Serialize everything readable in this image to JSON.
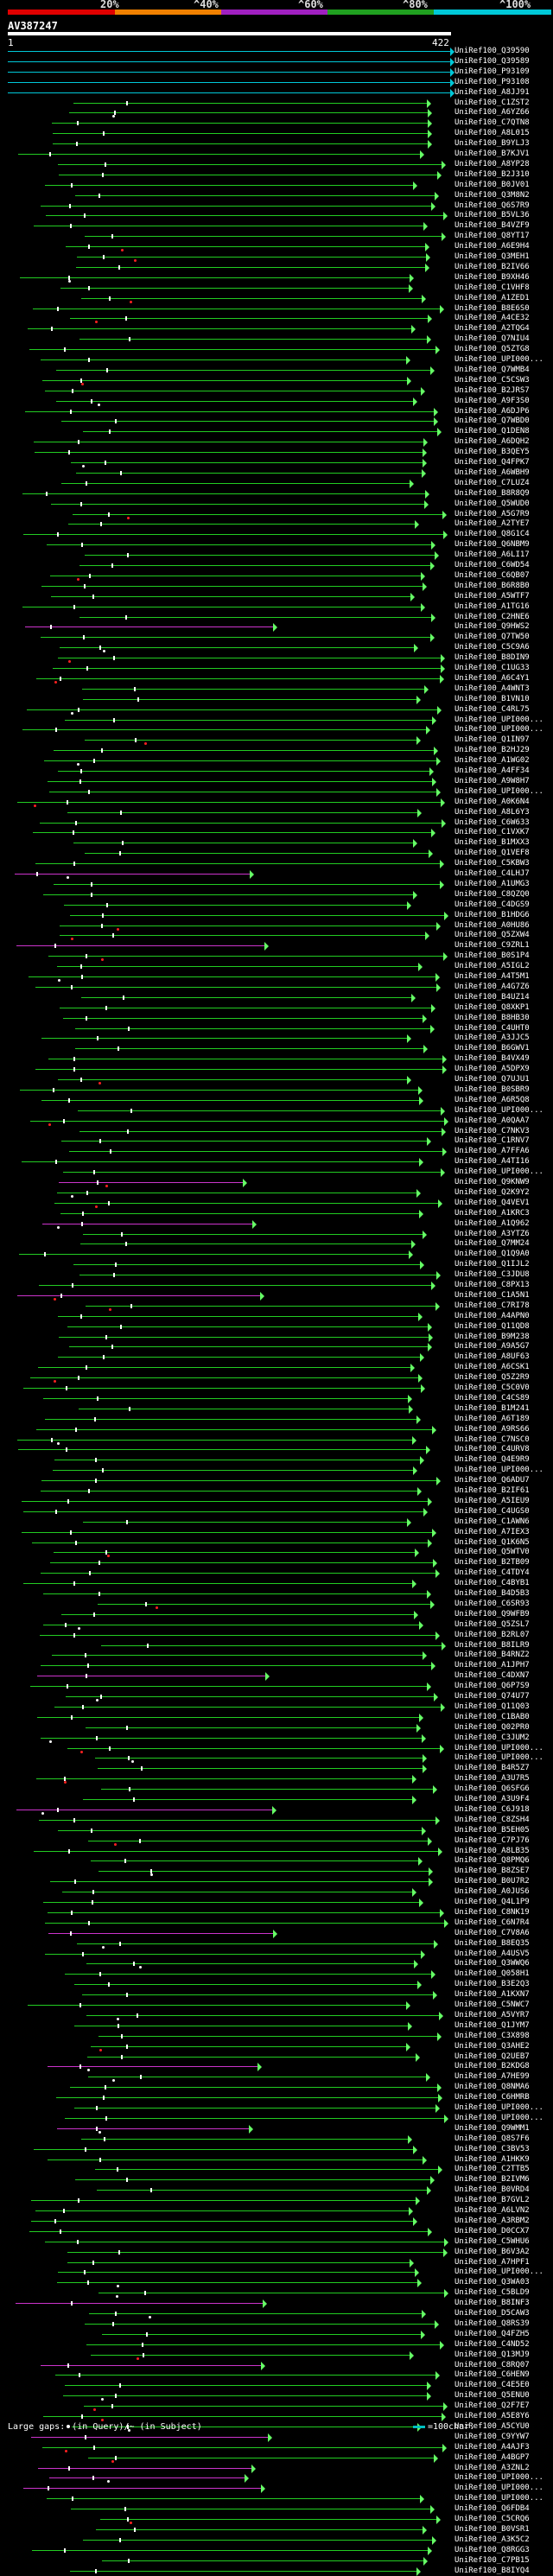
{
  "scale": {
    "labels": [
      "20%",
      "^40%",
      "^60%",
      "^80%",
      "^100%"
    ],
    "colors": [
      "#e00000",
      "#f08000",
      "#a020c0",
      "#20a020",
      "#00c8d8"
    ]
  },
  "query": {
    "name": "AV387247",
    "start": "1",
    "end": "422"
  },
  "legend": {
    "gaps_text_before": "Large gaps:",
    "gaps_text_after": "(in Query)/~ (in Subject)",
    "bar_text": "=100char."
  },
  "colors": {
    "green": "#22cc22",
    "cyan": "#00c8d8",
    "magenta": "#cc33cc",
    "arrow": "#66ff66",
    "marker": "#ffffff",
    "red": "#ff2020"
  },
  "hits": [
    {
      "label": "UniRef100_Q39590",
      "color": "cyan"
    },
    {
      "label": "UniRef100_Q39589",
      "color": "cyan"
    },
    {
      "label": "UniRef100_P93109",
      "color": "cyan"
    },
    {
      "label": "UniRef100_P93108",
      "color": "cyan"
    },
    {
      "label": "UniRef100_A8JJ91",
      "color": "cyan"
    },
    {
      "label": "UniRef100_C1ZST2",
      "color": "green"
    },
    {
      "label": "UniRef100_A6YZ66",
      "color": "green"
    },
    {
      "label": "UniRef100_C7QTN8",
      "color": "green"
    },
    {
      "label": "UniRef100_A8L015",
      "color": "green"
    },
    {
      "label": "UniRef100_B9YLJ3",
      "color": "green"
    },
    {
      "label": "UniRef100_B7KJV1",
      "color": "green"
    },
    {
      "label": "UniRef100_A8YP28",
      "color": "green"
    },
    {
      "label": "UniRef100_B2J310",
      "color": "green"
    },
    {
      "label": "UniRef100_B0JV01",
      "color": "green"
    },
    {
      "label": "UniRef100_Q3M8N2",
      "color": "green"
    },
    {
      "label": "UniRef100_Q6S7R9",
      "color": "green"
    },
    {
      "label": "UniRef100_B5VL36",
      "color": "green"
    },
    {
      "label": "UniRef100_B4VZF9",
      "color": "green"
    },
    {
      "label": "UniRef100_Q8YT17",
      "color": "green"
    },
    {
      "label": "UniRef100_A6E9H4",
      "color": "green"
    },
    {
      "label": "UniRef100_Q3MEH1",
      "color": "green"
    },
    {
      "label": "UniRef100_B2IV66",
      "color": "green"
    },
    {
      "label": "UniRef100_B9XH46",
      "color": "green"
    },
    {
      "label": "UniRef100_C1VHF8",
      "color": "green"
    },
    {
      "label": "UniRef100_A1ZED1",
      "color": "green"
    },
    {
      "label": "UniRef100_B8E6S0",
      "color": "green"
    },
    {
      "label": "UniRef100_A4CE32",
      "color": "green"
    },
    {
      "label": "UniRef100_A2TQG4",
      "color": "green"
    },
    {
      "label": "UniRef100_Q7NIU4",
      "color": "green"
    },
    {
      "label": "UniRef100_Q5ZTG8",
      "color": "green"
    },
    {
      "label": "UniRef100_UPI000...",
      "color": "green"
    },
    {
      "label": "UniRef100_Q7WMB4",
      "color": "green"
    },
    {
      "label": "UniRef100_C5CSW3",
      "color": "green"
    },
    {
      "label": "UniRef100_B2JRS7",
      "color": "green"
    },
    {
      "label": "UniRef100_A9F3S0",
      "color": "green"
    },
    {
      "label": "UniRef100_A6DJP6",
      "color": "green"
    },
    {
      "label": "UniRef100_Q7WBD0",
      "color": "green"
    },
    {
      "label": "UniRef100_Q1DEN8",
      "color": "green"
    },
    {
      "label": "UniRef100_A6DQH2",
      "color": "green"
    },
    {
      "label": "UniRef100_B3QEY5",
      "color": "green"
    },
    {
      "label": "UniRef100_Q4FPK7",
      "color": "green"
    },
    {
      "label": "UniRef100_A6WBH9",
      "color": "green"
    },
    {
      "label": "UniRef100_C7LUZ4",
      "color": "green"
    },
    {
      "label": "UniRef100_B8R8Q9",
      "color": "green"
    },
    {
      "label": "UniRef100_Q5WUD0",
      "color": "green"
    },
    {
      "label": "UniRef100_A5G7R9",
      "color": "green"
    },
    {
      "label": "UniRef100_A2TYE7",
      "color": "green"
    },
    {
      "label": "UniRef100_Q8G1C4",
      "color": "green"
    },
    {
      "label": "UniRef100_Q6NBM9",
      "color": "green"
    },
    {
      "label": "UniRef100_A6LI17",
      "color": "green"
    },
    {
      "label": "UniRef100_C6WD54",
      "color": "green"
    },
    {
      "label": "UniRef100_C6QB07",
      "color": "green"
    },
    {
      "label": "UniRef100_B6R8B0",
      "color": "green"
    },
    {
      "label": "UniRef100_A5WTF7",
      "color": "green"
    },
    {
      "label": "UniRef100_A1TG16",
      "color": "green"
    },
    {
      "label": "UniRef100_C2HNE6",
      "color": "green"
    },
    {
      "label": "UniRef100_Q9HWS2",
      "color": "magenta"
    },
    {
      "label": "UniRef100_Q7TW50",
      "color": "green"
    },
    {
      "label": "UniRef100_C5C9A6",
      "color": "green"
    },
    {
      "label": "UniRef100_B8DIN9",
      "color": "green"
    },
    {
      "label": "UniRef100_C1UG33",
      "color": "green"
    },
    {
      "label": "UniRef100_A6C4Y1",
      "color": "green"
    },
    {
      "label": "UniRef100_A4WNT3",
      "color": "green"
    },
    {
      "label": "UniRef100_B1VN10",
      "color": "green"
    },
    {
      "label": "UniRef100_C4RL75",
      "color": "green"
    },
    {
      "label": "UniRef100_UPI000...",
      "color": "green"
    },
    {
      "label": "UniRef100_UPI000...",
      "color": "green"
    },
    {
      "label": "UniRef100_Q1IN97",
      "color": "green"
    },
    {
      "label": "UniRef100_B2HJ29",
      "color": "green"
    },
    {
      "label": "UniRef100_A1WG02",
      "color": "green"
    },
    {
      "label": "UniRef100_A4FF34",
      "color": "green"
    },
    {
      "label": "UniRef100_A9W8H7",
      "color": "green"
    },
    {
      "label": "UniRef100_UPI000...",
      "color": "green"
    },
    {
      "label": "UniRef100_A0K6N4",
      "color": "green"
    },
    {
      "label": "UniRef100_A8L6Y3",
      "color": "green"
    },
    {
      "label": "UniRef100_C6W633",
      "color": "green"
    },
    {
      "label": "UniRef100_C1VXK7",
      "color": "green"
    },
    {
      "label": "UniRef100_B1MXX3",
      "color": "green"
    },
    {
      "label": "UniRef100_Q1VEF8",
      "color": "green"
    },
    {
      "label": "UniRef100_C5KBW3",
      "color": "green"
    },
    {
      "label": "UniRef100_C4LHJ7",
      "color": "magenta"
    },
    {
      "label": "UniRef100_A1UMG3",
      "color": "green"
    },
    {
      "label": "UniRef100_C8QZQ0",
      "color": "green"
    },
    {
      "label": "UniRef100_C4DGS9",
      "color": "green"
    },
    {
      "label": "UniRef100_B1HDG6",
      "color": "green"
    },
    {
      "label": "UniRef100_A0HU86",
      "color": "green"
    },
    {
      "label": "UniRef100_Q5ZXW4",
      "color": "green"
    },
    {
      "label": "UniRef100_C9ZRL1",
      "color": "magenta"
    },
    {
      "label": "UniRef100_B0S1P4",
      "color": "green"
    },
    {
      "label": "UniRef100_A5IGL2",
      "color": "green"
    },
    {
      "label": "UniRef100_A4T5M1",
      "color": "green"
    },
    {
      "label": "UniRef100_A4G7Z6",
      "color": "green"
    },
    {
      "label": "UniRef100_B4UZ14",
      "color": "green"
    },
    {
      "label": "UniRef100_Q8XKP1",
      "color": "green"
    },
    {
      "label": "UniRef100_B8HB30",
      "color": "green"
    },
    {
      "label": "UniRef100_C4UHT0",
      "color": "green"
    },
    {
      "label": "UniRef100_A3JJC5",
      "color": "green"
    },
    {
      "label": "UniRef100_B6GWV1",
      "color": "green"
    },
    {
      "label": "UniRef100_B4VX49",
      "color": "green"
    },
    {
      "label": "UniRef100_A5DPX9",
      "color": "green"
    },
    {
      "label": "UniRef100_Q7UJU1",
      "color": "green"
    },
    {
      "label": "UniRef100_B0SBR9",
      "color": "green"
    },
    {
      "label": "UniRef100_A6R5Q8",
      "color": "green"
    },
    {
      "label": "UniRef100_UPI000...",
      "color": "green"
    },
    {
      "label": "UniRef100_A0QAA7",
      "color": "green"
    },
    {
      "label": "UniRef100_C7NKV3",
      "color": "green"
    },
    {
      "label": "UniRef100_C1RNV7",
      "color": "green"
    },
    {
      "label": "UniRef100_A7FFA6",
      "color": "green"
    },
    {
      "label": "UniRef100_A4TI16",
      "color": "green"
    },
    {
      "label": "UniRef100_UPI000...",
      "color": "green"
    },
    {
      "label": "UniRef100_Q9KNW9",
      "color": "magenta"
    },
    {
      "label": "UniRef100_Q2K9Y2",
      "color": "green"
    },
    {
      "label": "UniRef100_Q4VEV1",
      "color": "green"
    },
    {
      "label": "UniRef100_A1KRC3",
      "color": "green"
    },
    {
      "label": "UniRef100_A1Q962",
      "color": "magenta"
    },
    {
      "label": "UniRef100_A3YTZ6",
      "color": "green"
    },
    {
      "label": "UniRef100_Q7MM24",
      "color": "green"
    },
    {
      "label": "UniRef100_Q1Q9A0",
      "color": "green"
    },
    {
      "label": "UniRef100_Q1IJL2",
      "color": "green"
    },
    {
      "label": "UniRef100_C3JDU8",
      "color": "green"
    },
    {
      "label": "UniRef100_C8PX13",
      "color": "green"
    },
    {
      "label": "UniRef100_C1A5N1",
      "color": "magenta"
    },
    {
      "label": "UniRef100_C7RI78",
      "color": "green"
    },
    {
      "label": "UniRef100_A4APN0",
      "color": "green"
    },
    {
      "label": "UniRef100_Q11QD8",
      "color": "green"
    },
    {
      "label": "UniRef100_B9M238",
      "color": "green"
    },
    {
      "label": "UniRef100_A9A5G7",
      "color": "green"
    },
    {
      "label": "UniRef100_A8UF63",
      "color": "green"
    },
    {
      "label": "UniRef100_A6CSK1",
      "color": "green"
    },
    {
      "label": "UniRef100_Q5Z2R9",
      "color": "green"
    },
    {
      "label": "UniRef100_C5C0V0",
      "color": "green"
    },
    {
      "label": "UniRef100_C4CS89",
      "color": "green"
    },
    {
      "label": "UniRef100_B1M241",
      "color": "green"
    },
    {
      "label": "UniRef100_A6T189",
      "color": "green"
    },
    {
      "label": "UniRef100_A9RS66",
      "color": "green"
    },
    {
      "label": "UniRef100_C7NSC0",
      "color": "green"
    },
    {
      "label": "UniRef100_C4URV8",
      "color": "green"
    },
    {
      "label": "UniRef100_Q4E9R9",
      "color": "green"
    },
    {
      "label": "UniRef100_UPI000...",
      "color": "green"
    },
    {
      "label": "UniRef100_Q6ADU7",
      "color": "green"
    },
    {
      "label": "UniRef100_B2IF61",
      "color": "green"
    },
    {
      "label": "UniRef100_A5IEU9",
      "color": "green"
    },
    {
      "label": "UniRef100_C4UGS0",
      "color": "green"
    },
    {
      "label": "UniRef100_C1AWN6",
      "color": "green"
    },
    {
      "label": "UniRef100_A7IEX3",
      "color": "green"
    },
    {
      "label": "UniRef100_Q1K6N5",
      "color": "green"
    },
    {
      "label": "UniRef100_Q5WTV0",
      "color": "green"
    },
    {
      "label": "UniRef100_B2TB09",
      "color": "green"
    },
    {
      "label": "UniRef100_C4TDY4",
      "color": "green"
    },
    {
      "label": "UniRef100_C4BYB1",
      "color": "green"
    },
    {
      "label": "UniRef100_B4D5B3",
      "color": "green"
    },
    {
      "label": "UniRef100_C6SR93",
      "color": "green"
    },
    {
      "label": "UniRef100_Q9WFB9",
      "color": "green"
    },
    {
      "label": "UniRef100_Q5ZSL7",
      "color": "green"
    },
    {
      "label": "UniRef100_B2RL07",
      "color": "green"
    },
    {
      "label": "UniRef100_B8ILR9",
      "color": "green"
    },
    {
      "label": "UniRef100_B4RNZ2",
      "color": "green"
    },
    {
      "label": "UniRef100_A1JPH7",
      "color": "green"
    },
    {
      "label": "UniRef100_C4DXN7",
      "color": "magenta"
    },
    {
      "label": "UniRef100_Q6P7S9",
      "color": "green"
    },
    {
      "label": "UniRef100_Q74U77",
      "color": "green"
    },
    {
      "label": "UniRef100_Q11Q03",
      "color": "green"
    },
    {
      "label": "UniRef100_C1BAB0",
      "color": "green"
    },
    {
      "label": "UniRef100_Q02PR0",
      "color": "green"
    },
    {
      "label": "UniRef100_C3JUM2",
      "color": "green"
    },
    {
      "label": "UniRef100_UPI000...",
      "color": "green"
    },
    {
      "label": "UniRef100_UPI000...",
      "color": "green"
    },
    {
      "label": "UniRef100_B4R5Z7",
      "color": "green"
    },
    {
      "label": "UniRef100_A3U7R5",
      "color": "green"
    },
    {
      "label": "UniRef100_Q6SFG6",
      "color": "green"
    },
    {
      "label": "UniRef100_A3U9F4",
      "color": "green"
    },
    {
      "label": "UniRef100_C6J918",
      "color": "magenta"
    },
    {
      "label": "UniRef100_C8ZSH4",
      "color": "green"
    },
    {
      "label": "UniRef100_B5EH05",
      "color": "green"
    },
    {
      "label": "UniRef100_C7PJ76",
      "color": "green"
    },
    {
      "label": "UniRef100_A8LB35",
      "color": "green"
    },
    {
      "label": "UniRef100_Q8PMQ6",
      "color": "green"
    },
    {
      "label": "UniRef100_B8ZSE7",
      "color": "green"
    },
    {
      "label": "UniRef100_B0U7R2",
      "color": "green"
    },
    {
      "label": "UniRef100_A0JUS6",
      "color": "green"
    },
    {
      "label": "UniRef100_Q4L1P9",
      "color": "green"
    },
    {
      "label": "UniRef100_C8NK19",
      "color": "green"
    },
    {
      "label": "UniRef100_C6N7R4",
      "color": "green"
    },
    {
      "label": "UniRef100_C7V8A6",
      "color": "magenta"
    },
    {
      "label": "UniRef100_B8EQ35",
      "color": "green"
    },
    {
      "label": "UniRef100_A4USV5",
      "color": "green"
    },
    {
      "label": "UniRef100_Q3WWQ6",
      "color": "green"
    },
    {
      "label": "UniRef100_Q058H1",
      "color": "green"
    },
    {
      "label": "UniRef100_B3E2Q3",
      "color": "green"
    },
    {
      "label": "UniRef100_A1KXN7",
      "color": "green"
    },
    {
      "label": "UniRef100_C5NWC7",
      "color": "green"
    },
    {
      "label": "UniRef100_A5VYR7",
      "color": "green"
    },
    {
      "label": "UniRef100_Q1JYM7",
      "color": "green"
    },
    {
      "label": "UniRef100_C3X898",
      "color": "green"
    },
    {
      "label": "UniRef100_Q3AHE2",
      "color": "green"
    },
    {
      "label": "UniRef100_Q2UEB7",
      "color": "green"
    },
    {
      "label": "UniRef100_B2KDG8",
      "color": "magenta"
    },
    {
      "label": "UniRef100_A7HE99",
      "color": "green"
    },
    {
      "label": "UniRef100_Q8NMA6",
      "color": "green"
    },
    {
      "label": "UniRef100_C6HMRB",
      "color": "green"
    },
    {
      "label": "UniRef100_UPI000...",
      "color": "green"
    },
    {
      "label": "UniRef100_UPI000...",
      "color": "green"
    },
    {
      "label": "UniRef100_Q9WMM1",
      "color": "magenta"
    },
    {
      "label": "UniRef100_Q8S7F6",
      "color": "green"
    },
    {
      "label": "UniRef100_C3BV53",
      "color": "green"
    },
    {
      "label": "UniRef100_A1HKK9",
      "color": "green"
    },
    {
      "label": "UniRef100_C2TTB5",
      "color": "green"
    },
    {
      "label": "UniRef100_B2IVM6",
      "color": "green"
    },
    {
      "label": "UniRef100_B0VRD4",
      "color": "green"
    },
    {
      "label": "UniRef100_B7GVL2",
      "color": "green"
    },
    {
      "label": "UniRef100_A6LVN2",
      "color": "green"
    },
    {
      "label": "UniRef100_A3RBM2",
      "color": "green"
    },
    {
      "label": "UniRef100_D0CCX7",
      "color": "green"
    },
    {
      "label": "UniRef100_C5WHU6",
      "color": "green"
    },
    {
      "label": "UniRef100_B6V3A2",
      "color": "green"
    },
    {
      "label": "UniRef100_A7HPF1",
      "color": "green"
    },
    {
      "label": "UniRef100_UPI000...",
      "color": "green"
    },
    {
      "label": "UniRef100_Q3WA03",
      "color": "green"
    },
    {
      "label": "UniRef100_C5BLD9",
      "color": "green"
    },
    {
      "label": "UniRef100_B8INF3",
      "color": "magenta"
    },
    {
      "label": "UniRef100_D5CAW3",
      "color": "green"
    },
    {
      "label": "UniRef100_Q8RS39",
      "color": "green"
    },
    {
      "label": "UniRef100_Q4FZH5",
      "color": "green"
    },
    {
      "label": "UniRef100_C4ND52",
      "color": "green"
    },
    {
      "label": "UniRef100_Q13MJ9",
      "color": "green"
    },
    {
      "label": "UniRef100_C8RQ07",
      "color": "magenta"
    },
    {
      "label": "UniRef100_C6HEN9",
      "color": "green"
    },
    {
      "label": "UniRef100_C4E5E0",
      "color": "green"
    },
    {
      "label": "UniRef100_Q5ENU0",
      "color": "green"
    },
    {
      "label": "UniRef100_Q2F7E7",
      "color": "green"
    },
    {
      "label": "UniRef100_A5E8Y6",
      "color": "green"
    },
    {
      "label": "UniRef100_A5CYU0",
      "color": "green"
    },
    {
      "label": "UniRef100_C9YYW7",
      "color": "magenta"
    },
    {
      "label": "UniRef100_A4AJF3",
      "color": "green"
    },
    {
      "label": "UniRef100_A4BGP7",
      "color": "green"
    },
    {
      "label": "UniRef100_A3ZNL2",
      "color": "magenta"
    },
    {
      "label": "UniRef100_UPI000...",
      "color": "magenta"
    },
    {
      "label": "UniRef100_UPI000...",
      "color": "magenta"
    },
    {
      "label": "UniRef100_UPI000...",
      "color": "green"
    },
    {
      "label": "UniRef100_Q6FDB4",
      "color": "green"
    },
    {
      "label": "UniRef100_C5CRQ6",
      "color": "green"
    },
    {
      "label": "UniRef100_B0VSR1",
      "color": "green"
    },
    {
      "label": "UniRef100_A3K5C2",
      "color": "green"
    },
    {
      "label": "UniRef100_Q8RGG3",
      "color": "green"
    },
    {
      "label": "UniRef100_C7PB15",
      "color": "green"
    },
    {
      "label": "UniRef100_B8IYQ4",
      "color": "green"
    }
  ]
}
